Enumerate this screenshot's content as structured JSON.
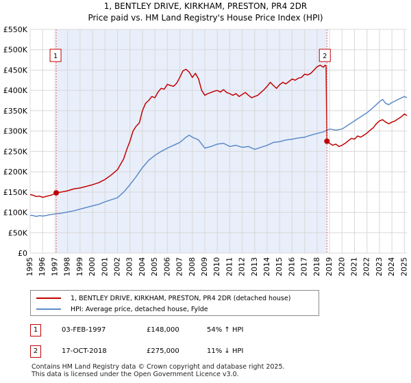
{
  "chart_data": {
    "type": "line",
    "title": "1, BENTLEY DRIVE, KIRKHAM, PRESTON, PR4 2DR",
    "subtitle": "Price paid vs. HM Land Registry's House Price Index (HPI)",
    "xlim": [
      1995,
      2025.2
    ],
    "ylim": [
      0,
      550000
    ],
    "x_ticks": [
      "1995",
      "1996",
      "1997",
      "1998",
      "1999",
      "2000",
      "2001",
      "2002",
      "2003",
      "2004",
      "2005",
      "2006",
      "2007",
      "2008",
      "2009",
      "2010",
      "2011",
      "2012",
      "2013",
      "2014",
      "2015",
      "2016",
      "2017",
      "2018",
      "2019",
      "2020",
      "2021",
      "2022",
      "2023",
      "2024",
      "2025"
    ],
    "y_ticks": [
      {
        "value": 0,
        "label": "£0"
      },
      {
        "value": 50000,
        "label": "£50K"
      },
      {
        "value": 100000,
        "label": "£100K"
      },
      {
        "value": 150000,
        "label": "£150K"
      },
      {
        "value": 200000,
        "label": "£200K"
      },
      {
        "value": 250000,
        "label": "£250K"
      },
      {
        "value": 300000,
        "label": "£300K"
      },
      {
        "value": 350000,
        "label": "£350K"
      },
      {
        "value": 400000,
        "label": "£400K"
      },
      {
        "value": 450000,
        "label": "£450K"
      },
      {
        "value": 500000,
        "label": "£500K"
      },
      {
        "value": 550000,
        "label": "£550K"
      }
    ],
    "shaded_range": [
      1997.09,
      2018.79
    ],
    "series": [
      {
        "name": "1, BENTLEY DRIVE, KIRKHAM, PRESTON, PR4 2DR (detached house)",
        "color": "#c00000",
        "points": [
          [
            1995.0,
            144000
          ],
          [
            1995.25,
            142000
          ],
          [
            1995.5,
            139000
          ],
          [
            1995.75,
            140000
          ],
          [
            1996.0,
            137000
          ],
          [
            1996.25,
            139000
          ],
          [
            1996.5,
            141000
          ],
          [
            1996.75,
            143000
          ],
          [
            1997.09,
            148000
          ],
          [
            1997.5,
            150000
          ],
          [
            1998.0,
            153000
          ],
          [
            1998.5,
            158000
          ],
          [
            1999.0,
            160000
          ],
          [
            1999.5,
            164000
          ],
          [
            2000.0,
            168000
          ],
          [
            2000.5,
            173000
          ],
          [
            2001.0,
            181000
          ],
          [
            2001.5,
            192000
          ],
          [
            2002.0,
            205000
          ],
          [
            2002.5,
            232000
          ],
          [
            2002.75,
            255000
          ],
          [
            2003.0,
            275000
          ],
          [
            2003.25,
            300000
          ],
          [
            2003.5,
            312000
          ],
          [
            2003.75,
            320000
          ],
          [
            2004.0,
            350000
          ],
          [
            2004.25,
            368000
          ],
          [
            2004.5,
            375000
          ],
          [
            2004.75,
            385000
          ],
          [
            2005.0,
            382000
          ],
          [
            2005.25,
            396000
          ],
          [
            2005.5,
            405000
          ],
          [
            2005.75,
            403000
          ],
          [
            2006.0,
            415000
          ],
          [
            2006.25,
            412000
          ],
          [
            2006.5,
            410000
          ],
          [
            2006.75,
            418000
          ],
          [
            2007.0,
            432000
          ],
          [
            2007.25,
            448000
          ],
          [
            2007.5,
            452000
          ],
          [
            2007.75,
            445000
          ],
          [
            2008.0,
            432000
          ],
          [
            2008.25,
            442000
          ],
          [
            2008.5,
            428000
          ],
          [
            2008.75,
            400000
          ],
          [
            2009.0,
            388000
          ],
          [
            2009.25,
            392000
          ],
          [
            2009.5,
            395000
          ],
          [
            2009.75,
            398000
          ],
          [
            2010.0,
            400000
          ],
          [
            2010.25,
            396000
          ],
          [
            2010.5,
            402000
          ],
          [
            2010.75,
            395000
          ],
          [
            2011.0,
            392000
          ],
          [
            2011.25,
            388000
          ],
          [
            2011.5,
            392000
          ],
          [
            2011.75,
            385000
          ],
          [
            2012.0,
            390000
          ],
          [
            2012.25,
            395000
          ],
          [
            2012.5,
            388000
          ],
          [
            2012.75,
            382000
          ],
          [
            2013.0,
            385000
          ],
          [
            2013.25,
            388000
          ],
          [
            2013.5,
            395000
          ],
          [
            2013.75,
            402000
          ],
          [
            2014.0,
            410000
          ],
          [
            2014.25,
            420000
          ],
          [
            2014.5,
            412000
          ],
          [
            2014.75,
            405000
          ],
          [
            2015.0,
            414000
          ],
          [
            2015.25,
            420000
          ],
          [
            2015.5,
            416000
          ],
          [
            2015.75,
            422000
          ],
          [
            2016.0,
            428000
          ],
          [
            2016.25,
            425000
          ],
          [
            2016.5,
            430000
          ],
          [
            2016.75,
            432000
          ],
          [
            2017.0,
            440000
          ],
          [
            2017.25,
            438000
          ],
          [
            2017.5,
            442000
          ],
          [
            2017.75,
            450000
          ],
          [
            2018.0,
            458000
          ],
          [
            2018.25,
            462000
          ],
          [
            2018.5,
            457000
          ],
          [
            2018.65,
            462000
          ],
          [
            2018.72,
            460000
          ],
          [
            2018.79,
            275000
          ],
          [
            2019.0,
            270000
          ],
          [
            2019.25,
            265000
          ],
          [
            2019.5,
            268000
          ],
          [
            2019.75,
            262000
          ],
          [
            2020.0,
            265000
          ],
          [
            2020.25,
            270000
          ],
          [
            2020.5,
            276000
          ],
          [
            2020.75,
            282000
          ],
          [
            2021.0,
            280000
          ],
          [
            2021.25,
            288000
          ],
          [
            2021.5,
            285000
          ],
          [
            2021.75,
            290000
          ],
          [
            2022.0,
            295000
          ],
          [
            2022.25,
            302000
          ],
          [
            2022.5,
            308000
          ],
          [
            2022.75,
            318000
          ],
          [
            2023.0,
            325000
          ],
          [
            2023.25,
            328000
          ],
          [
            2023.5,
            322000
          ],
          [
            2023.75,
            318000
          ],
          [
            2024.0,
            322000
          ],
          [
            2024.25,
            325000
          ],
          [
            2024.5,
            330000
          ],
          [
            2024.75,
            335000
          ],
          [
            2025.0,
            342000
          ],
          [
            2025.2,
            338000
          ]
        ]
      },
      {
        "name": "HPI: Average price, detached house, Fylde",
        "color": "#5a8ac6",
        "points": [
          [
            1995.0,
            93000
          ],
          [
            1995.25,
            92000
          ],
          [
            1995.5,
            90000
          ],
          [
            1995.75,
            92000
          ],
          [
            1996.0,
            91000
          ],
          [
            1996.25,
            92000
          ],
          [
            1996.5,
            94000
          ],
          [
            1996.75,
            95000
          ],
          [
            1997.0,
            96000
          ],
          [
            1997.5,
            98000
          ],
          [
            1998.0,
            101000
          ],
          [
            1998.5,
            104000
          ],
          [
            1999.0,
            108000
          ],
          [
            1999.5,
            112000
          ],
          [
            2000.0,
            116000
          ],
          [
            2000.5,
            120000
          ],
          [
            2001.0,
            126000
          ],
          [
            2001.5,
            131000
          ],
          [
            2002.0,
            136000
          ],
          [
            2002.5,
            150000
          ],
          [
            2003.0,
            168000
          ],
          [
            2003.5,
            188000
          ],
          [
            2004.0,
            210000
          ],
          [
            2004.5,
            228000
          ],
          [
            2005.0,
            240000
          ],
          [
            2005.5,
            250000
          ],
          [
            2006.0,
            258000
          ],
          [
            2006.5,
            265000
          ],
          [
            2007.0,
            272000
          ],
          [
            2007.5,
            285000
          ],
          [
            2007.75,
            290000
          ],
          [
            2008.0,
            285000
          ],
          [
            2008.5,
            278000
          ],
          [
            2009.0,
            258000
          ],
          [
            2009.5,
            262000
          ],
          [
            2010.0,
            268000
          ],
          [
            2010.5,
            270000
          ],
          [
            2011.0,
            262000
          ],
          [
            2011.5,
            265000
          ],
          [
            2012.0,
            260000
          ],
          [
            2012.5,
            262000
          ],
          [
            2013.0,
            255000
          ],
          [
            2013.5,
            260000
          ],
          [
            2014.0,
            265000
          ],
          [
            2014.5,
            272000
          ],
          [
            2015.0,
            274000
          ],
          [
            2015.5,
            278000
          ],
          [
            2016.0,
            280000
          ],
          [
            2016.5,
            283000
          ],
          [
            2017.0,
            285000
          ],
          [
            2017.5,
            290000
          ],
          [
            2018.0,
            294000
          ],
          [
            2018.5,
            298000
          ],
          [
            2019.0,
            305000
          ],
          [
            2019.5,
            302000
          ],
          [
            2020.0,
            305000
          ],
          [
            2020.5,
            315000
          ],
          [
            2021.0,
            325000
          ],
          [
            2021.5,
            335000
          ],
          [
            2022.0,
            345000
          ],
          [
            2022.5,
            358000
          ],
          [
            2023.0,
            372000
          ],
          [
            2023.25,
            378000
          ],
          [
            2023.5,
            368000
          ],
          [
            2023.75,
            365000
          ],
          [
            2024.0,
            370000
          ],
          [
            2024.5,
            378000
          ],
          [
            2025.0,
            385000
          ],
          [
            2025.2,
            382000
          ]
        ]
      }
    ],
    "annotations": [
      {
        "id": "1",
        "x": 1997.09,
        "y": 148000,
        "date": "03-FEB-1997",
        "price": "£148,000",
        "hpi": "54% ↑ HPI"
      },
      {
        "id": "2",
        "x": 2018.79,
        "y": 275000,
        "date": "17-OCT-2018",
        "price": "£275,000",
        "hpi": "11% ↓ HPI"
      }
    ]
  },
  "footer": {
    "line1": "Contains HM Land Registry data © Crown copyright and database right 2025.",
    "line2": "This data is licensed under the Open Government Licence v3.0."
  }
}
